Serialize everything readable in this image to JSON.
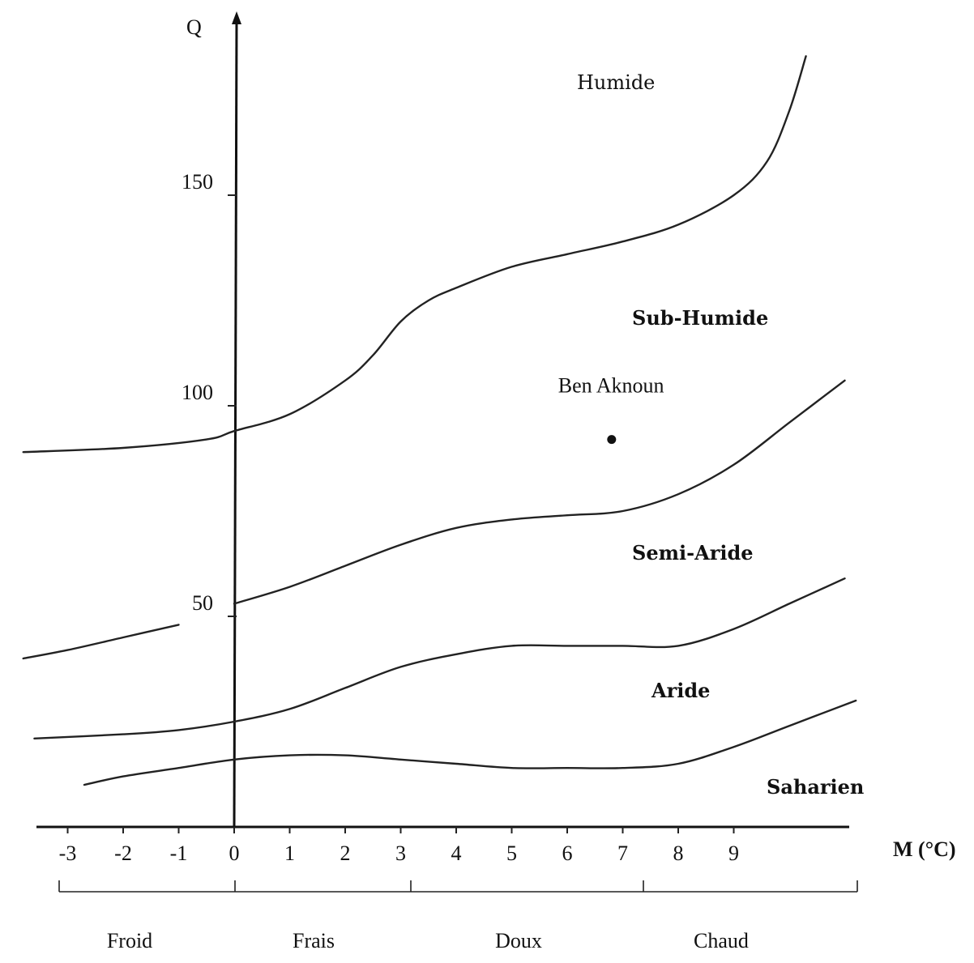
{
  "chart_data": {
    "type": "line",
    "title": "",
    "ylabel": "Q",
    "xlabel": "M (°C)",
    "xlim": [
      -3.3,
      11
    ],
    "ylim": [
      0,
      190
    ],
    "x_ticks": [
      "-3",
      "-2",
      "-1",
      "0",
      "1",
      "2",
      "3",
      "4",
      "5",
      "6",
      "7",
      "8",
      "9"
    ],
    "y_ticks": [
      {
        "value": 50,
        "label": "50"
      },
      {
        "value": 100,
        "label": "100"
      },
      {
        "value": 150,
        "label": "150"
      }
    ],
    "series": [
      {
        "boundary": "humide/sub-humide",
        "points": [
          [
            -3.8,
            89
          ],
          [
            -2,
            90
          ],
          [
            -0.5,
            92
          ],
          [
            0,
            94
          ],
          [
            1,
            98
          ],
          [
            2,
            106
          ],
          [
            2.5,
            112
          ],
          [
            3,
            120
          ],
          [
            3.5,
            125
          ],
          [
            4,
            128
          ],
          [
            5,
            133
          ],
          [
            6,
            136
          ],
          [
            7,
            139
          ],
          [
            8,
            143
          ],
          [
            9,
            150
          ],
          [
            9.6,
            158
          ],
          [
            10,
            170
          ],
          [
            10.3,
            183
          ]
        ]
      },
      {
        "boundary": "sub-humide/semi-aride",
        "points": [
          [
            0,
            53
          ],
          [
            1,
            57
          ],
          [
            2,
            62
          ],
          [
            3,
            67
          ],
          [
            4,
            71
          ],
          [
            5,
            73
          ],
          [
            6,
            74
          ],
          [
            7,
            75
          ],
          [
            8,
            79
          ],
          [
            9,
            86
          ],
          [
            10,
            96
          ],
          [
            11,
            106
          ]
        ]
      },
      {
        "boundary": "sub-humide/semi-aride (froid)",
        "points": [
          [
            -3.8,
            40
          ],
          [
            -3,
            42
          ],
          [
            -2,
            45
          ],
          [
            -1,
            48
          ]
        ]
      },
      {
        "boundary": "semi-aride/aride",
        "points": [
          [
            -3.6,
            21
          ],
          [
            -2,
            22
          ],
          [
            -1,
            23
          ],
          [
            0,
            25
          ],
          [
            1,
            28
          ],
          [
            2,
            33
          ],
          [
            3,
            38
          ],
          [
            4,
            41
          ],
          [
            5,
            43
          ],
          [
            6,
            43
          ],
          [
            7,
            43
          ],
          [
            8,
            43
          ],
          [
            9,
            47
          ],
          [
            10,
            53
          ],
          [
            11,
            59
          ]
        ]
      },
      {
        "boundary": "aride/saharien",
        "points": [
          [
            -2.7,
            10
          ],
          [
            -2,
            12
          ],
          [
            -1,
            14
          ],
          [
            0,
            16
          ],
          [
            1,
            17
          ],
          [
            2,
            17
          ],
          [
            3,
            16
          ],
          [
            4,
            15
          ],
          [
            5,
            14
          ],
          [
            6,
            14
          ],
          [
            7,
            14
          ],
          [
            8,
            15
          ],
          [
            9,
            19
          ],
          [
            10,
            24
          ],
          [
            11.2,
            30
          ]
        ]
      }
    ],
    "points": [
      {
        "label": "Ben Aknoun",
        "x": 6.8,
        "y": 92
      }
    ],
    "zones": [
      "Humide",
      "Sub-Humide",
      "Semi-Aride",
      "Aride",
      "Saharien"
    ],
    "temperature_classes": [
      "Froid",
      "Frais",
      "Doux",
      "Chaud"
    ],
    "grid": false,
    "legend": "none"
  }
}
